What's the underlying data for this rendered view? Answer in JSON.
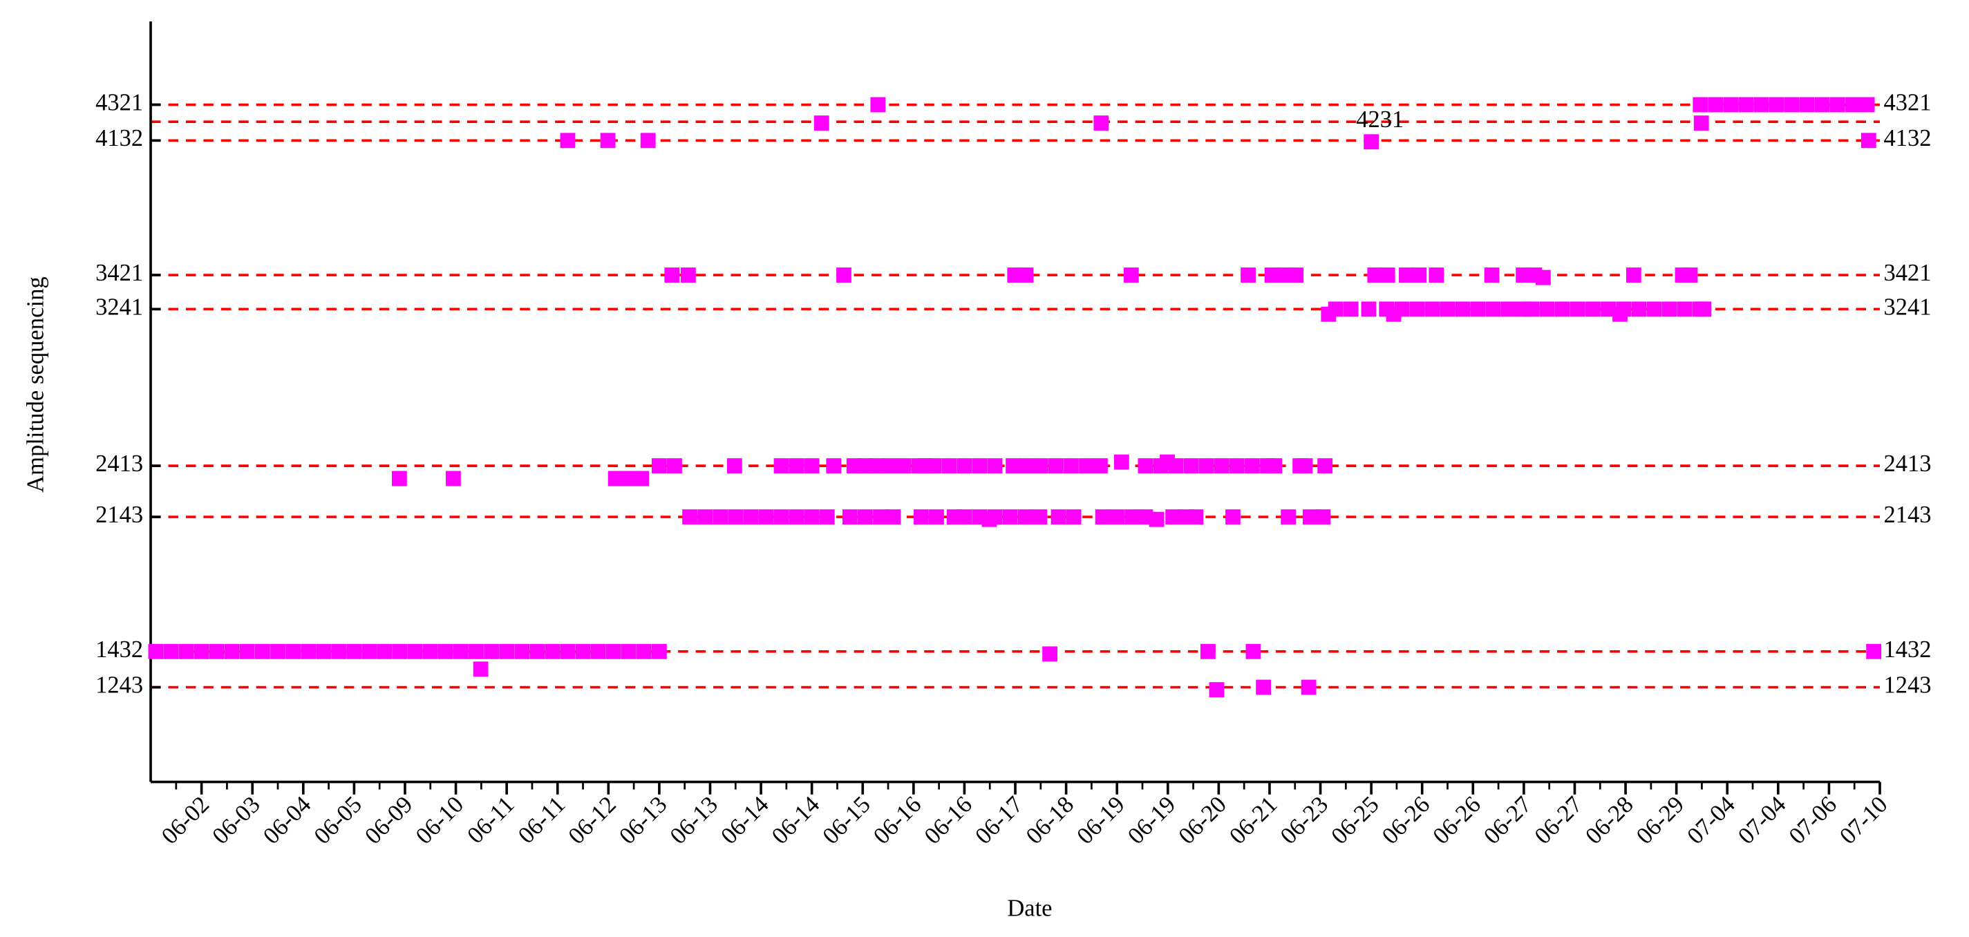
{
  "chart_data": {
    "type": "scatter",
    "xlabel": "Date",
    "ylabel": "Amplitude sequencing",
    "color": "#ff00ff",
    "line_color": "#ff0000",
    "xlim": [
      0,
      34
    ],
    "ylim": [
      743,
      4761
    ],
    "xticks": [
      {
        "value": 1,
        "label": "06-02"
      },
      {
        "value": 2,
        "label": "06-03"
      },
      {
        "value": 3,
        "label": "06-04"
      },
      {
        "value": 4,
        "label": "06-05"
      },
      {
        "value": 5,
        "label": "06-09"
      },
      {
        "value": 6,
        "label": "06-10"
      },
      {
        "value": 7,
        "label": "06-11"
      },
      {
        "value": 8,
        "label": "06-11"
      },
      {
        "value": 9,
        "label": "06-12"
      },
      {
        "value": 10,
        "label": "06-13"
      },
      {
        "value": 11,
        "label": "06-13"
      },
      {
        "value": 12,
        "label": "06-14"
      },
      {
        "value": 13,
        "label": "06-14"
      },
      {
        "value": 14,
        "label": "06-15"
      },
      {
        "value": 15,
        "label": "06-16"
      },
      {
        "value": 16,
        "label": "06-16"
      },
      {
        "value": 17,
        "label": "06-17"
      },
      {
        "value": 18,
        "label": "06-18"
      },
      {
        "value": 19,
        "label": "06-19"
      },
      {
        "value": 20,
        "label": "06-19"
      },
      {
        "value": 21,
        "label": "06-20"
      },
      {
        "value": 22,
        "label": "06-21"
      },
      {
        "value": 23,
        "label": "06-23"
      },
      {
        "value": 24,
        "label": "06-25"
      },
      {
        "value": 25,
        "label": "06-26"
      },
      {
        "value": 26,
        "label": "06-26"
      },
      {
        "value": 27,
        "label": "06-27"
      },
      {
        "value": 28,
        "label": "06-27"
      },
      {
        "value": 29,
        "label": "06-28"
      },
      {
        "value": 30,
        "label": "06-29"
      },
      {
        "value": 31,
        "label": "07-04"
      },
      {
        "value": 32,
        "label": "07-04"
      },
      {
        "value": 33,
        "label": "07-06"
      },
      {
        "value": 34,
        "label": "07-10"
      }
    ],
    "yticks": [
      1243,
      1432,
      2143,
      2413,
      3241,
      3421,
      4132,
      4321
    ],
    "hlines": [
      1243,
      1432,
      2143,
      2413,
      3241,
      3421,
      4132,
      4231,
      4321
    ],
    "annotation": "4231",
    "series": [
      {
        "x": [
          0.1,
          0.4,
          0.7,
          1.0,
          1.3,
          1.6,
          1.9,
          2.2,
          2.5,
          2.8,
          3.1,
          3.4,
          3.7,
          4.0,
          4.3,
          4.6,
          4.9,
          5.2,
          5.5,
          5.8,
          6.1,
          6.4,
          6.7,
          7.0,
          7.3,
          7.6,
          7.9,
          8.2,
          8.5,
          8.8,
          9.1,
          9.4,
          9.7,
          10.0,
          6.49,
          17.68,
          20.79,
          21.68,
          33.88
        ],
        "values": [
          1432,
          1432,
          1432,
          1432,
          1432,
          1432,
          1432,
          1432,
          1432,
          1432,
          1432,
          1432,
          1432,
          1432,
          1432,
          1432,
          1432,
          1432,
          1432,
          1432,
          1432,
          1432,
          1432,
          1432,
          1432,
          1432,
          1432,
          1432,
          1432,
          1432,
          1432,
          1432,
          1432,
          1432,
          1339,
          1419,
          1432,
          1432,
          1432
        ]
      },
      {
        "x": [
          20.96,
          21.88,
          22.77
        ],
        "values": [
          1230,
          1243,
          1243
        ]
      },
      {
        "x": [
          10.6,
          10.9,
          11.2,
          11.5,
          11.8,
          12.1,
          12.4,
          12.7,
          13.0,
          13.3,
          13.75,
          14.05,
          14.35,
          14.6,
          15.15,
          15.45,
          15.8,
          16.0,
          16.3,
          16.6,
          16.9,
          17.2,
          17.48,
          17.85,
          18.15,
          18.72,
          19.0,
          19.3,
          19.56,
          20.1,
          20.35,
          20.55,
          21.28,
          22.37,
          22.8,
          23.05,
          19.78,
          16.49
        ],
        "values": [
          2143,
          2143,
          2143,
          2143,
          2143,
          2143,
          2143,
          2143,
          2143,
          2143,
          2143,
          2143,
          2143,
          2143,
          2143,
          2143,
          2143,
          2143,
          2143,
          2143,
          2143,
          2143,
          2143,
          2143,
          2143,
          2143,
          2143,
          2143,
          2143,
          2143,
          2143,
          2143,
          2143,
          2143,
          2143,
          2143,
          2130,
          2130
        ]
      },
      {
        "x": [
          10.0,
          10.3,
          11.48,
          12.4,
          12.7,
          13.0,
          13.43,
          13.83,
          14.05,
          14.27,
          14.52,
          14.8,
          15.1,
          15.23,
          15.4,
          15.7,
          16.0,
          16.3,
          16.6,
          16.96,
          17.23,
          17.5,
          17.8,
          18.1,
          18.4,
          18.67,
          19.56,
          19.86,
          20.16,
          20.46,
          20.76,
          21.06,
          21.36,
          21.66,
          21.96,
          22.1,
          22.6,
          22.7,
          23.09,
          19.09,
          19.99,
          4.89,
          5.95,
          9.14,
          9.4,
          9.65
        ],
        "values": [
          2413,
          2413,
          2413,
          2413,
          2413,
          2413,
          2413,
          2413,
          2413,
          2413,
          2413,
          2413,
          2413,
          2413,
          2413,
          2413,
          2413,
          2413,
          2413,
          2413,
          2413,
          2413,
          2413,
          2413,
          2413,
          2413,
          2413,
          2413,
          2413,
          2413,
          2413,
          2413,
          2413,
          2413,
          2413,
          2413,
          2413,
          2413,
          2413,
          2433,
          2433,
          2346,
          2346,
          2346,
          2346,
          2346
        ]
      },
      {
        "x": [
          23.3,
          23.6,
          23.95,
          24.3,
          24.6,
          24.9,
          25.2,
          25.5,
          25.8,
          26.1,
          26.4,
          26.7,
          26.99,
          27.16,
          27.46,
          27.76,
          28.06,
          28.36,
          28.66,
          28.96,
          29.26,
          29.56,
          29.86,
          30.16,
          30.46,
          30.54,
          23.16,
          24.44,
          28.89
        ],
        "values": [
          3241,
          3241,
          3241,
          3241,
          3241,
          3241,
          3241,
          3241,
          3241,
          3241,
          3241,
          3241,
          3241,
          3241,
          3241,
          3241,
          3241,
          3241,
          3241,
          3241,
          3241,
          3241,
          3241,
          3241,
          3241,
          3241,
          3214,
          3214,
          3214
        ]
      },
      {
        "x": [
          10.25,
          10.57,
          13.63,
          16.99,
          17.21,
          19.28,
          21.58,
          22.05,
          22.3,
          22.52,
          24.07,
          24.32,
          24.69,
          24.94,
          25.28,
          26.37,
          26.99,
          27.21,
          29.16,
          30.12,
          30.27,
          27.38
        ],
        "values": [
          3421,
          3421,
          3421,
          3421,
          3421,
          3421,
          3421,
          3421,
          3421,
          3421,
          3421,
          3421,
          3421,
          3421,
          3421,
          3421,
          3421,
          3421,
          3421,
          3421,
          3421,
          3408
        ]
      },
      {
        "x": [
          8.2,
          8.99,
          9.78,
          33.78,
          24.0
        ],
        "values": [
          4132,
          4132,
          4132,
          4132,
          4125
        ]
      },
      {
        "x": [
          13.19,
          18.69,
          30.49
        ],
        "values": [
          4224,
          4224,
          4224
        ]
      },
      {
        "x": [
          14.3,
          30.47,
          30.77,
          31.07,
          31.37,
          31.67,
          31.97,
          32.27,
          32.57,
          32.87,
          33.17,
          33.47,
          33.75
        ],
        "values": [
          4321,
          4321,
          4321,
          4321,
          4321,
          4321,
          4321,
          4321,
          4321,
          4321,
          4321,
          4321,
          4321
        ]
      }
    ]
  }
}
